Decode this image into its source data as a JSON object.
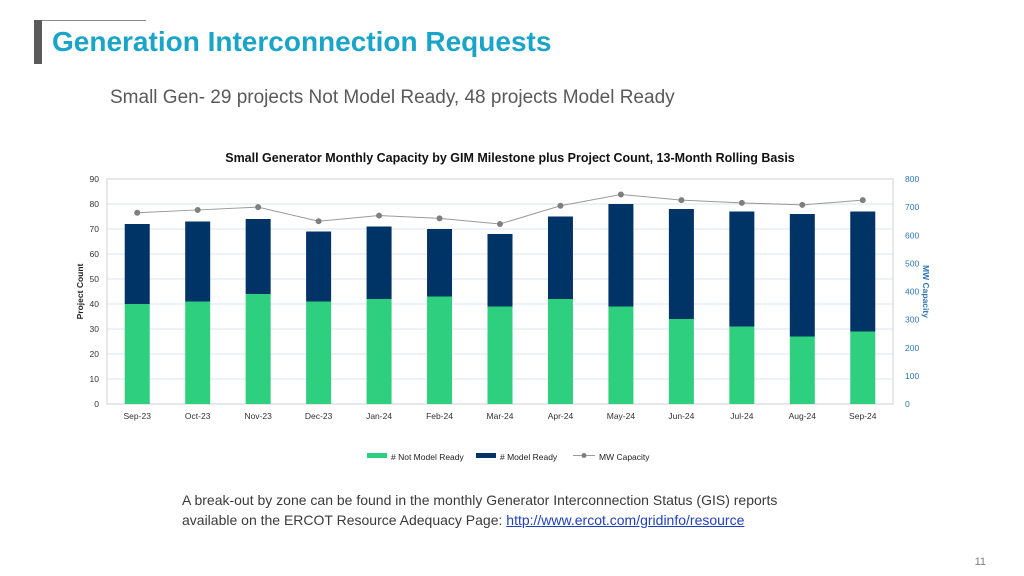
{
  "header": {
    "title": "Generation Interconnection Requests",
    "subtitle": "Small Gen- 29 projects Not Model Ready, 48 projects Model Ready"
  },
  "chart_data": {
    "type": "bar",
    "title": "Small Generator Monthly Capacity by GIM Milestone plus Project Count, 13-Month Rolling Basis",
    "categories": [
      "Sep-23",
      "Oct-23",
      "Nov-23",
      "Dec-23",
      "Jan-24",
      "Feb-24",
      "Mar-24",
      "Apr-24",
      "May-24",
      "Jun-24",
      "Jul-24",
      "Aug-24",
      "Sep-24"
    ],
    "stacked": true,
    "series": [
      {
        "name": "# Not Model Ready",
        "axis": "left",
        "color": "#2ecf7f",
        "values": [
          40,
          41,
          44,
          41,
          42,
          43,
          39,
          42,
          39,
          34,
          31,
          27,
          29
        ]
      },
      {
        "name": "# Model Ready",
        "axis": "left",
        "color": "#003366",
        "values": [
          32,
          32,
          30,
          28,
          29,
          27,
          29,
          33,
          41,
          44,
          46,
          49,
          48
        ]
      },
      {
        "name": "MW Capacity",
        "axis": "right",
        "type": "line",
        "color": "#808080",
        "values": [
          680,
          690,
          700,
          650,
          670,
          660,
          640,
          705,
          745,
          725,
          715,
          708,
          725
        ]
      }
    ],
    "ylabel": "Project Count",
    "ylabel_right": "MW Capacity",
    "ylim": [
      0,
      90
    ],
    "ylim_right": [
      0,
      800
    ],
    "yticks": [
      "0",
      "10",
      "20",
      "30",
      "40",
      "50",
      "60",
      "70",
      "80",
      "90"
    ],
    "yticks_right": [
      "0",
      "100",
      "200",
      "300",
      "400",
      "500",
      "600",
      "700",
      "800"
    ],
    "grid": true,
    "legend_position": "bottom"
  },
  "note": {
    "line1": "A break-out by zone can be found in the monthly Generator Interconnection Status (GIS) reports",
    "line2_prefix": "available on the ERCOT Resource Adequacy Page: ",
    "link_text": "http://www.ercot.com/gridinfo/resource"
  },
  "footer": {
    "page_number": "11"
  }
}
